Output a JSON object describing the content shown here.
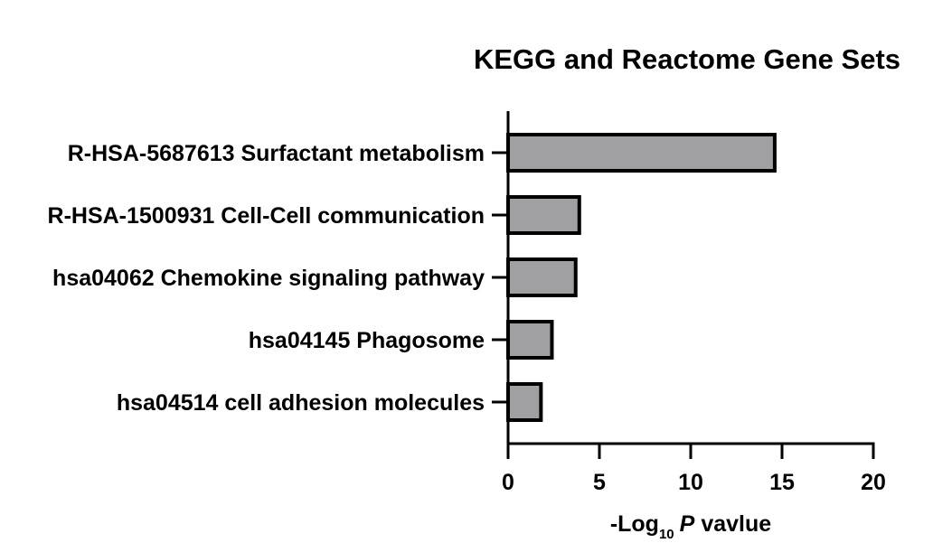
{
  "chart_data": {
    "type": "bar",
    "orientation": "horizontal",
    "title": "KEGG and Reactome Gene Sets",
    "categories": [
      "R-HSA-5687613 Surfactant metabolism",
      "R-HSA-1500931 Cell-Cell communication",
      "hsa04062 Chemokine signaling pathway",
      "hsa04145 Phagosome",
      "hsa04514 cell adhesion molecules"
    ],
    "values": [
      14.6,
      3.9,
      3.7,
      2.4,
      1.8
    ],
    "xlabel": {
      "prefix": "-Log",
      "subscript": "10",
      "italic": "P",
      "suffix": "vavlue"
    },
    "xlim": [
      0,
      20
    ],
    "xticks": [
      "0",
      "5",
      "10",
      "15",
      "20"
    ],
    "ylabel": "",
    "grid": false,
    "legend": "none",
    "colors": {
      "bar_fill": "#a0a0a3",
      "bar_stroke": "#000000",
      "axis": "#000000"
    }
  }
}
